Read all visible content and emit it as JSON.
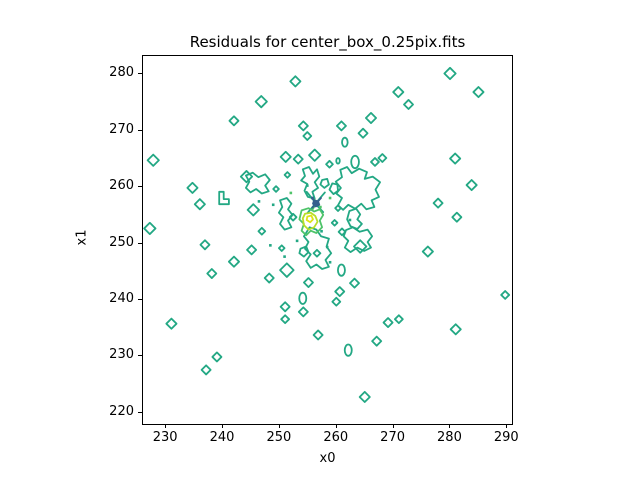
{
  "chart_data": {
    "type": "contour",
    "title": "Residuals for center_box_0.25pix.fits",
    "xlabel": "x0",
    "ylabel": "x1",
    "xlim": [
      226.1,
      291.0
    ],
    "ylim": [
      217.8,
      283.1
    ],
    "xticks": [
      230,
      240,
      250,
      260,
      270,
      280,
      290
    ],
    "yticks": [
      220,
      230,
      240,
      250,
      260,
      270,
      280
    ],
    "grid": false,
    "legend": false,
    "peak": {
      "x0": 256.6,
      "x1": 256.9
    },
    "colors": {
      "teal": "#23a884",
      "green": "#4fc46a",
      "yg": "#b8de29",
      "yellow": "#dde318",
      "blue": "#365f8d",
      "axis": "#000000",
      "background": "#ffffff"
    },
    "contour_markers": [
      [
        246.9,
        275.0,
        1.0
      ],
      [
        252.9,
        278.6,
        0.9
      ],
      [
        242.1,
        271.6,
        0.8
      ],
      [
        254.3,
        270.7,
        0.8
      ],
      [
        255.0,
        268.9,
        0.7
      ],
      [
        227.9,
        264.6,
        1.0
      ],
      [
        251.2,
        265.2,
        0.9
      ],
      [
        253.4,
        264.8,
        0.8
      ],
      [
        256.3,
        265.5,
        1.0
      ],
      [
        234.8,
        259.7,
        0.9
      ],
      [
        236.1,
        256.8,
        0.9
      ],
      [
        244.3,
        261.7,
        1.0
      ],
      [
        245.5,
        255.8,
        1.0
      ],
      [
        227.3,
        252.5,
        1.0
      ],
      [
        280.1,
        280.0,
        1.0
      ],
      [
        285.1,
        276.7,
        0.9
      ],
      [
        271.0,
        276.7,
        0.9
      ],
      [
        272.8,
        274.5,
        0.8
      ],
      [
        266.2,
        272.1,
        0.9
      ],
      [
        261.0,
        270.7,
        0.8
      ],
      [
        264.8,
        269.4,
        0.8
      ],
      [
        261.6,
        267.8,
        0.8,
        "o"
      ],
      [
        263.4,
        264.3,
        1.1,
        "o"
      ],
      [
        260.4,
        264.5,
        0.5,
        "o"
      ],
      [
        266.9,
        264.3,
        0.7
      ],
      [
        268.2,
        265.0,
        0.7
      ],
      [
        281.0,
        264.9,
        0.9
      ],
      [
        283.9,
        260.2,
        0.9
      ],
      [
        278.0,
        257.0,
        0.8
      ],
      [
        281.3,
        254.5,
        0.8
      ],
      [
        237.0,
        249.6,
        0.8
      ],
      [
        245.2,
        248.7,
        0.8
      ],
      [
        242.1,
        246.6,
        0.9
      ],
      [
        238.2,
        244.5,
        0.8
      ],
      [
        248.3,
        243.7,
        0.8
      ],
      [
        251.4,
        245.1,
        1.2
      ],
      [
        255.2,
        242.9,
        0.8
      ],
      [
        254.2,
        240.1,
        1.0,
        "o"
      ],
      [
        251.1,
        238.6,
        0.8
      ],
      [
        254.3,
        237.7,
        0.8
      ],
      [
        251.1,
        236.4,
        0.7
      ],
      [
        231.1,
        235.6,
        0.9
      ],
      [
        256.9,
        233.6,
        0.8
      ],
      [
        239.1,
        229.7,
        0.8
      ],
      [
        237.2,
        227.4,
        0.8
      ],
      [
        276.2,
        248.4,
        0.9
      ],
      [
        264.3,
        249.3,
        1.1
      ],
      [
        261.0,
        245.1,
        1.0,
        "o"
      ],
      [
        263.3,
        242.8,
        0.8
      ],
      [
        260.7,
        241.3,
        0.8
      ],
      [
        260.1,
        239.5,
        0.7
      ],
      [
        269.2,
        235.8,
        0.8
      ],
      [
        271.1,
        236.4,
        0.7
      ],
      [
        267.2,
        232.5,
        0.8
      ],
      [
        281.1,
        234.6,
        0.9
      ],
      [
        262.2,
        230.9,
        1.0,
        "o"
      ],
      [
        265.1,
        222.6,
        0.9
      ],
      [
        289.8,
        240.7,
        0.7
      ],
      [
        252.5,
        254.5,
        0.6
      ],
      [
        260.4,
        256.1,
        0.5
      ],
      [
        261.1,
        251.9,
        0.6
      ],
      [
        256.7,
        248.1,
        0.6
      ],
      [
        250.5,
        249.0,
        0.5
      ],
      [
        247.0,
        252.0,
        0.6
      ],
      [
        249.5,
        259.5,
        0.5
      ],
      [
        258.9,
        263.9,
        0.6
      ],
      [
        251.5,
        262.0,
        0.5
      ],
      [
        259.8,
        253.5,
        0.5
      ]
    ],
    "contour_loops": [
      {
        "c": "teal",
        "closed": true,
        "pts": [
          [
            260.8,
            262.9
          ],
          [
            262.0,
            263.4
          ],
          [
            262.8,
            262.3
          ],
          [
            264.1,
            263.1
          ],
          [
            265.5,
            262.5
          ],
          [
            265.1,
            261.3
          ],
          [
            266.5,
            261.7
          ],
          [
            267.8,
            260.7
          ],
          [
            267.0,
            259.4
          ],
          [
            267.6,
            258.1
          ],
          [
            266.3,
            257.5
          ],
          [
            266.8,
            256.3
          ],
          [
            265.4,
            255.9
          ],
          [
            264.5,
            256.9
          ],
          [
            263.4,
            256.0
          ],
          [
            262.2,
            256.7
          ],
          [
            261.3,
            255.8
          ],
          [
            260.4,
            256.6
          ],
          [
            261.1,
            257.9
          ],
          [
            260.1,
            258.7
          ],
          [
            260.9,
            259.7
          ],
          [
            260.0,
            260.8
          ],
          [
            261.1,
            261.6
          ]
        ]
      },
      {
        "c": "teal",
        "closed": true,
        "pts": [
          [
            254.2,
            263.0
          ],
          [
            255.3,
            263.4
          ],
          [
            256.0,
            262.2
          ],
          [
            256.7,
            263.0
          ],
          [
            257.1,
            261.7
          ],
          [
            256.3,
            260.7
          ],
          [
            256.9,
            259.7
          ],
          [
            255.9,
            259.0
          ],
          [
            256.3,
            257.8
          ],
          [
            255.1,
            258.1
          ],
          [
            254.5,
            259.2
          ],
          [
            255.0,
            260.4
          ],
          [
            253.9,
            261.0
          ],
          [
            254.6,
            261.8
          ]
        ]
      },
      {
        "c": "teal",
        "closed": true,
        "pts": [
          [
            262.4,
            255.6
          ],
          [
            263.6,
            256.0
          ],
          [
            264.3,
            255.0
          ],
          [
            263.8,
            254.1
          ],
          [
            264.6,
            253.3
          ],
          [
            263.8,
            252.4
          ],
          [
            262.6,
            252.9
          ],
          [
            262.0,
            254.1
          ]
        ]
      },
      {
        "c": "teal",
        "closed": true,
        "pts": [
          [
            261.8,
            252.2
          ],
          [
            263.0,
            252.7
          ],
          [
            264.2,
            251.9
          ],
          [
            265.6,
            252.3
          ],
          [
            266.4,
            251.1
          ],
          [
            265.6,
            250.1
          ],
          [
            266.2,
            249.1
          ],
          [
            265.0,
            248.5
          ],
          [
            263.8,
            249.1
          ],
          [
            262.6,
            248.3
          ],
          [
            261.6,
            249.1
          ],
          [
            262.2,
            250.3
          ],
          [
            261.4,
            251.1
          ]
        ]
      },
      {
        "c": "teal",
        "closed": true,
        "pts": [
          [
            255.4,
            252.7
          ],
          [
            256.6,
            252.3
          ],
          [
            257.4,
            251.1
          ],
          [
            258.8,
            250.7
          ],
          [
            258.4,
            249.3
          ],
          [
            259.2,
            248.1
          ],
          [
            258.2,
            246.9
          ],
          [
            258.8,
            245.7
          ],
          [
            257.6,
            245.3
          ],
          [
            256.6,
            246.1
          ],
          [
            255.6,
            245.5
          ],
          [
            254.8,
            246.7
          ],
          [
            255.6,
            247.9
          ],
          [
            254.6,
            248.9
          ],
          [
            255.2,
            250.1
          ],
          [
            254.4,
            251.1
          ]
        ]
      },
      {
        "c": "teal",
        "closed": true,
        "pts": [
          [
            250.2,
            257.5
          ],
          [
            251.4,
            257.9
          ],
          [
            252.2,
            256.9
          ],
          [
            251.6,
            255.9
          ],
          [
            252.4,
            254.9
          ],
          [
            251.6,
            253.9
          ],
          [
            252.2,
            252.7
          ],
          [
            251.0,
            252.3
          ],
          [
            250.2,
            253.3
          ],
          [
            250.8,
            254.5
          ],
          [
            250.0,
            255.3
          ],
          [
            250.6,
            256.3
          ]
        ]
      },
      {
        "c": "teal",
        "closed": true,
        "pts": [
          [
            244.2,
            261.9
          ],
          [
            245.4,
            262.4
          ],
          [
            246.4,
            261.6
          ],
          [
            247.6,
            262.1
          ],
          [
            248.4,
            261.1
          ],
          [
            247.6,
            260.1
          ],
          [
            248.2,
            259.1
          ],
          [
            247.0,
            258.7
          ],
          [
            246.0,
            259.5
          ],
          [
            245.0,
            258.9
          ],
          [
            244.2,
            259.7
          ],
          [
            244.8,
            260.8
          ]
        ]
      },
      {
        "c": "teal",
        "closed": true,
        "pts": [
          [
            253.8,
            248.9
          ],
          [
            254.8,
            249.3
          ],
          [
            255.2,
            248.3
          ],
          [
            254.4,
            247.5
          ],
          [
            253.6,
            248.1
          ]
        ]
      },
      {
        "c": "teal",
        "closed": true,
        "pts": [
          [
            257.6,
            261.1
          ],
          [
            258.5,
            261.3
          ],
          [
            258.8,
            260.3
          ],
          [
            258.0,
            259.7
          ],
          [
            257.3,
            260.3
          ]
        ]
      },
      {
        "c": "teal",
        "closed": true,
        "pts": [
          [
            259.4,
            260.5
          ],
          [
            260.3,
            260.3
          ],
          [
            260.4,
            259.2
          ],
          [
            259.6,
            258.6
          ],
          [
            258.9,
            259.4
          ]
        ]
      },
      {
        "c": "teal",
        "closed": true,
        "pts": [
          [
            239.5,
            259.0
          ],
          [
            239.5,
            256.8
          ],
          [
            241.2,
            256.8
          ],
          [
            241.2,
            257.7
          ],
          [
            240.3,
            257.7
          ],
          [
            240.3,
            259.0
          ]
        ]
      },
      {
        "c": "teal",
        "closed": false,
        "pts": [
          [
            254.9,
            259.0
          ],
          [
            256.5,
            257.0
          ],
          [
            258.1,
            258.9
          ]
        ]
      },
      {
        "c": "teal",
        "closed": false,
        "pts": [
          [
            255.0,
            255.2
          ],
          [
            256.4,
            256.9
          ],
          [
            257.8,
            255.4
          ]
        ]
      },
      {
        "c": "green",
        "closed": true,
        "pts": [
          [
            254.0,
            255.7
          ],
          [
            255.2,
            256.1
          ],
          [
            256.2,
            255.5
          ],
          [
            257.2,
            255.9
          ],
          [
            257.8,
            254.9
          ],
          [
            257.2,
            253.9
          ],
          [
            257.6,
            252.7
          ],
          [
            256.6,
            251.7
          ],
          [
            255.6,
            252.1
          ],
          [
            254.8,
            251.3
          ],
          [
            254.0,
            252.1
          ],
          [
            254.4,
            253.3
          ],
          [
            253.6,
            254.1
          ]
        ]
      },
      {
        "c": "green",
        "closed": false,
        "pts": [
          [
            255.9,
            255.8
          ],
          [
            256.5,
            256.8
          ],
          [
            256.3,
            257.6
          ]
        ]
      },
      {
        "c": "yg",
        "closed": true,
        "pts": [
          [
            254.6,
            255.1
          ],
          [
            255.6,
            255.3
          ],
          [
            256.4,
            254.7
          ],
          [
            256.8,
            253.7
          ],
          [
            256.2,
            252.7
          ],
          [
            255.2,
            252.3
          ],
          [
            254.4,
            253.1
          ],
          [
            254.2,
            254.3
          ]
        ]
      },
      {
        "c": "yellow",
        "closed": true,
        "pts": [
          [
            255.0,
            254.6
          ],
          [
            255.7,
            254.8
          ],
          [
            256.0,
            254.1
          ],
          [
            255.5,
            253.6
          ],
          [
            254.9,
            254.0
          ]
        ]
      },
      {
        "c": "blue",
        "closed": true,
        "fill": true,
        "pts": [
          [
            256.2,
            257.5
          ],
          [
            256.9,
            257.3
          ],
          [
            257.1,
            256.7
          ],
          [
            256.5,
            256.4
          ],
          [
            256.0,
            256.9
          ]
        ]
      },
      {
        "c": "blue",
        "closed": false,
        "pts": [
          [
            255.8,
            258.0
          ],
          [
            256.6,
            257.0
          ],
          [
            257.4,
            257.9
          ]
        ]
      },
      {
        "c": "blue",
        "closed": false,
        "pts": [
          [
            255.9,
            256.2
          ],
          [
            256.6,
            257.0
          ]
        ]
      }
    ],
    "contour_dots": [
      [
        249.0,
        256.7,
        "teal"
      ],
      [
        253.2,
        250.3,
        "teal"
      ],
      [
        257.5,
        252.0,
        "teal"
      ],
      [
        259.0,
        246.5,
        "teal"
      ],
      [
        255.0,
        260.1,
        "teal"
      ],
      [
        248.5,
        249.5,
        "teal"
      ],
      [
        262.5,
        254.0,
        "teal"
      ],
      [
        251.0,
        247.5,
        "teal"
      ],
      [
        258.5,
        249.2,
        "teal"
      ],
      [
        246.5,
        257.3,
        "teal"
      ],
      [
        252.1,
        258.8,
        "green"
      ],
      [
        259.0,
        257.9,
        "green"
      ],
      [
        257.3,
        256.3,
        "green"
      ],
      [
        255.9,
        257.9,
        "blue"
      ]
    ]
  }
}
